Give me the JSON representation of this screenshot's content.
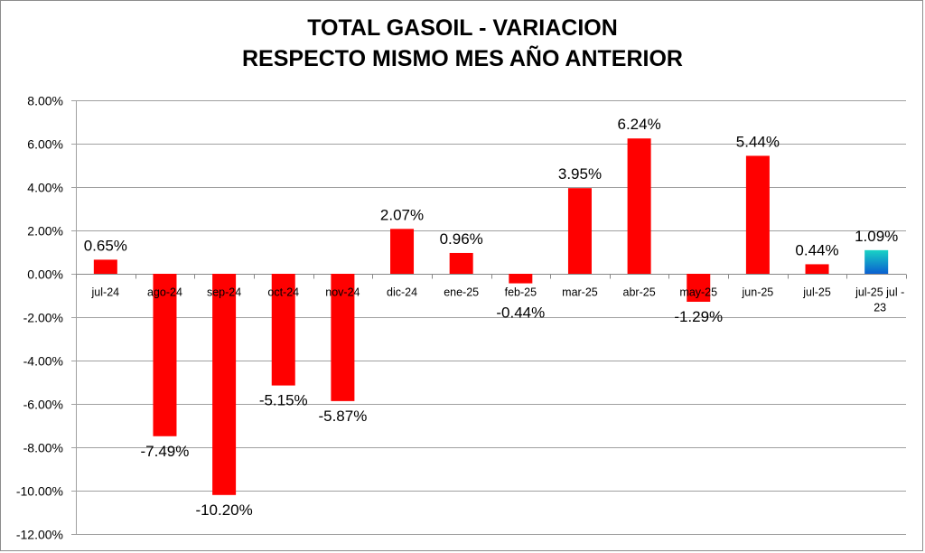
{
  "chart_data": {
    "type": "bar",
    "title_lines": [
      "TOTAL GASOIL - VARIACION",
      "RESPECTO MISMO MES AÑO ANTERIOR"
    ],
    "categories": [
      "jul-24",
      "ago-24",
      "sep-24",
      "oct-24",
      "nov-24",
      "dic-24",
      "ene-25",
      "feb-25",
      "mar-25",
      "abr-25",
      "may-25",
      "jun-25",
      "jul-25",
      "jul-25 jul - 23"
    ],
    "values": [
      0.65,
      -7.49,
      -10.2,
      -5.15,
      -5.87,
      2.07,
      0.96,
      -0.44,
      3.95,
      6.24,
      -1.29,
      5.44,
      0.44,
      1.09
    ],
    "data_labels": [
      "0.65%",
      "-7.49%",
      "-10.20%",
      "-5.15%",
      "-5.87%",
      "2.07%",
      "0.96%",
      "-0.44%",
      "3.95%",
      "6.24%",
      "-1.29%",
      "5.44%",
      "0.44%",
      "1.09%"
    ],
    "ylim": [
      -12,
      8
    ],
    "yticks": [
      "8.00%",
      "6.00%",
      "4.00%",
      "2.00%",
      "0.00%",
      "-2.00%",
      "-4.00%",
      "-6.00%",
      "-8.00%",
      "-10.00%",
      "-12.00%"
    ],
    "grid": true,
    "xlabel": "",
    "ylabel": "",
    "colors": {
      "bar": "#ff0000",
      "highlight_top": "#19d3c5",
      "highlight_bottom": "#0a5fd0",
      "grid": "#a0a0a0"
    }
  }
}
